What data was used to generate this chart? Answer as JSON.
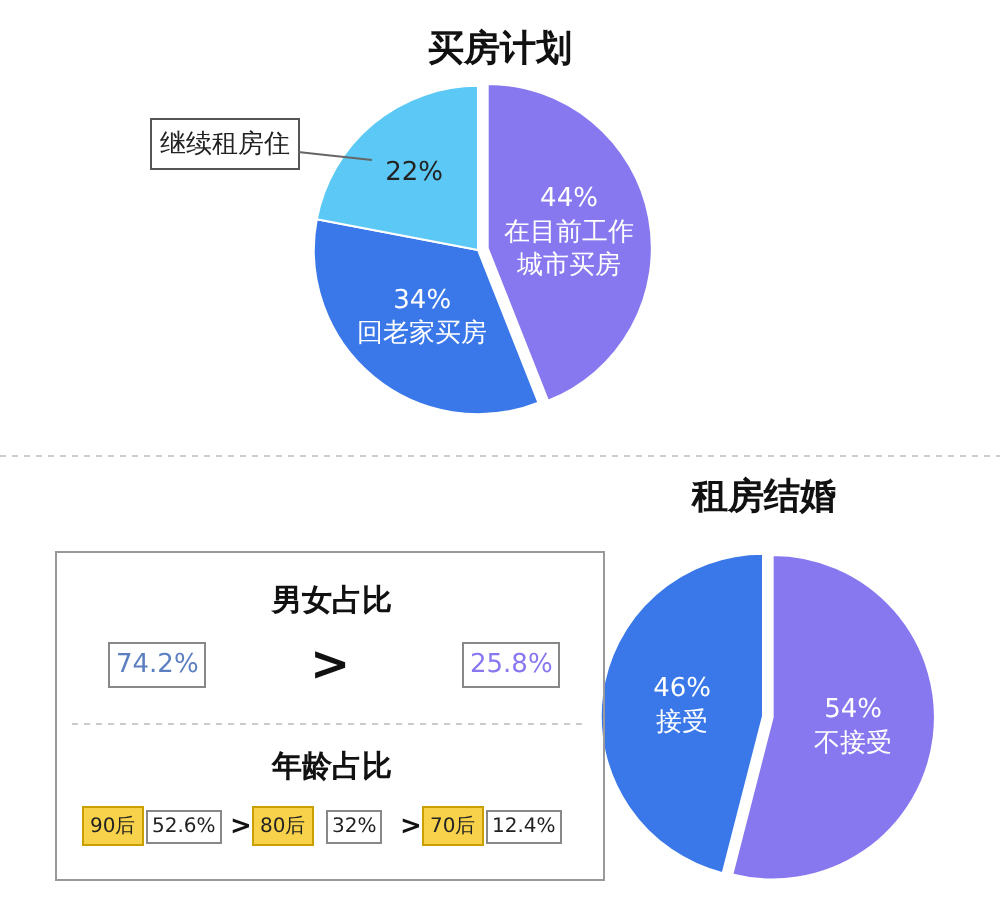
{
  "chart_data": [
    {
      "type": "pie",
      "title": "买房计划",
      "categories": [
        "在目前工作城市买房",
        "回老家买房",
        null
      ],
      "values": [
        44,
        34,
        22
      ],
      "value_labels": [
        "44%",
        "34%",
        "22%"
      ],
      "colors": [
        "#8878f0",
        "#3a78ea",
        "#5cc8f6"
      ],
      "annotations": [
        "继续租房住"
      ]
    },
    {
      "type": "pie",
      "title": "租房结婚",
      "categories": [
        "不接受",
        "接受"
      ],
      "values": [
        54,
        46
      ],
      "value_labels": [
        "54%",
        "46%"
      ],
      "colors": [
        "#8878f0",
        "#3a78ea"
      ]
    },
    {
      "type": "other",
      "title": "男女占比",
      "values": [
        74.2,
        25.8
      ],
      "value_labels": [
        "74.2%",
        "25.8%"
      ],
      "colors": [
        "#5b7fc0",
        "#8878f0"
      ],
      "annotations": [
        ">"
      ]
    },
    {
      "type": "other",
      "title": "年龄占比",
      "categories": [
        "90后",
        "80后",
        "70后"
      ],
      "values": [
        52.6,
        32,
        12.4
      ],
      "value_labels": [
        "52.6%",
        "32%",
        "12.4%"
      ],
      "annotations": [
        ">",
        ">"
      ]
    }
  ]
}
